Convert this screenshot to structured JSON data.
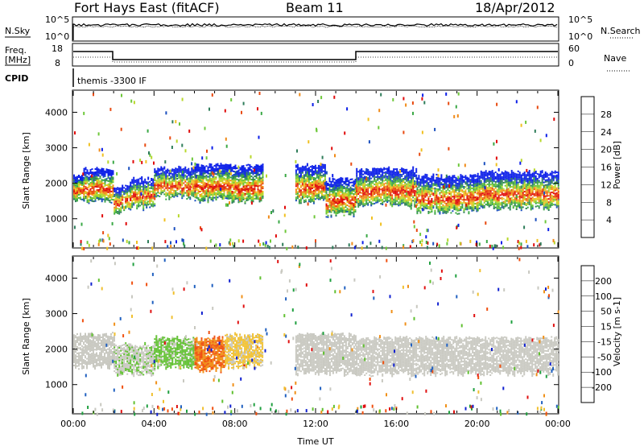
{
  "header": {
    "station": "Fort Hays East (fitACF)",
    "beam": "Beam 11",
    "date": "18/Apr/2012"
  },
  "summary_panels": {
    "nsky_label": "N.Sky",
    "nsearch_label": "N.Search",
    "freq_label_line1": "Freq.",
    "freq_label_line2": "[MHz]",
    "nave_label": "Nave",
    "cpid_label": "CPID",
    "cpid_text": "themis -3300 IF",
    "nsky_ticks": [
      "10^5",
      "10^0"
    ],
    "nsearch_ticks": [
      "10^5",
      "10^0"
    ],
    "freq_ticks": [
      "18",
      "8"
    ],
    "nave_ticks": [
      "60",
      "0"
    ]
  },
  "chart_data": [
    {
      "type": "heatmap",
      "name": "power",
      "ylabel": "Slant Range [km]",
      "xlabel": "",
      "xlim": [
        0,
        24
      ],
      "ylim": [
        200,
        4600
      ],
      "yticks": [
        "4000",
        "3000",
        "2000",
        "1000"
      ],
      "colorbar": {
        "label": "Power [dB]",
        "range": [
          0,
          32
        ],
        "ticks": [
          "28",
          "24",
          "20",
          "16",
          "12",
          "8",
          "4"
        ],
        "colors": [
          "#0b1ee8",
          "#1b4fbf",
          "#2e7d5a",
          "#3aa845",
          "#6ec83a",
          "#b8d82c",
          "#f0c020",
          "#f08a18",
          "#e84a10",
          "#e00a0a"
        ]
      },
      "bands": [
        {
          "t0": 0.0,
          "t1": 0.5,
          "r0": 1500,
          "r1": 2200
        },
        {
          "t0": 0.5,
          "t1": 2.0,
          "r0": 1500,
          "r1": 2400
        },
        {
          "t0": 2.0,
          "t1": 2.8,
          "r0": 1200,
          "r1": 1900
        },
        {
          "t0": 2.8,
          "t1": 4.0,
          "r0": 1300,
          "r1": 2100
        },
        {
          "t0": 4.0,
          "t1": 6.0,
          "r0": 1600,
          "r1": 2400
        },
        {
          "t0": 6.0,
          "t1": 9.4,
          "r0": 1500,
          "r1": 2500
        },
        {
          "t0": 11.0,
          "t1": 12.5,
          "r0": 1500,
          "r1": 2500
        },
        {
          "t0": 12.5,
          "t1": 14.0,
          "r0": 1100,
          "r1": 2100
        },
        {
          "t0": 14.0,
          "t1": 17.0,
          "r0": 1400,
          "r1": 2400
        },
        {
          "t0": 17.0,
          "t1": 20.0,
          "r0": 1200,
          "r1": 2200
        },
        {
          "t0": 20.0,
          "t1": 24.0,
          "r0": 1300,
          "r1": 2300
        }
      ]
    },
    {
      "type": "heatmap",
      "name": "velocity",
      "ylabel": "Slant Range [km]",
      "xlabel": "Time UT",
      "xlim": [
        0,
        24
      ],
      "ylim": [
        200,
        4600
      ],
      "yticks": [
        "4000",
        "3000",
        "2000",
        "1000"
      ],
      "xticks": [
        "00:00",
        "04:00",
        "08:00",
        "12:00",
        "16:00",
        "20:00",
        "00:00"
      ],
      "colorbar": {
        "label": "Velocity [m s-1]",
        "range": [
          -250,
          250
        ],
        "ticks": [
          "200",
          "100",
          "50",
          "15",
          "-15",
          "-50",
          "-100",
          "-200"
        ],
        "colors": [
          "#e01010",
          "#f05010",
          "#f09018",
          "#f0c030",
          "#c8c8c0",
          "#c8c8c0",
          "#60c030",
          "#20a040",
          "#2060c0",
          "#1020d0"
        ]
      },
      "bands": [
        {
          "t0": 0.0,
          "t1": 2.0,
          "r0": 1500,
          "r1": 2400,
          "v": 0
        },
        {
          "t0": 2.0,
          "t1": 4.0,
          "r0": 1300,
          "r1": 2100,
          "v": -40
        },
        {
          "t0": 4.0,
          "t1": 6.0,
          "r0": 1500,
          "r1": 2300,
          "v": -60
        },
        {
          "t0": 6.0,
          "t1": 7.5,
          "r0": 1400,
          "r1": 2300,
          "v": 150
        },
        {
          "t0": 7.5,
          "t1": 9.4,
          "r0": 1500,
          "r1": 2400,
          "v": 60
        },
        {
          "t0": 11.0,
          "t1": 14.0,
          "r0": 1300,
          "r1": 2400,
          "v": 0
        },
        {
          "t0": 14.0,
          "t1": 24.0,
          "r0": 1300,
          "r1": 2300,
          "v": 0
        }
      ]
    }
  ]
}
